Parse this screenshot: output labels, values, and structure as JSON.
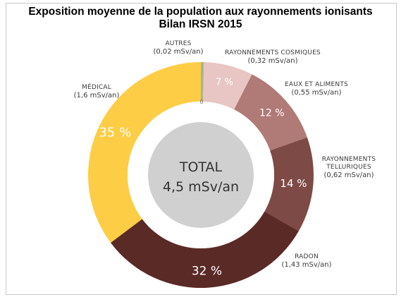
{
  "title_line1": "Exposition moyenne de la population aux rayonnements ionisants",
  "title_line2": "Bilan IRSN 2015",
  "center": {
    "label": "TOTAL",
    "value": "4,5 mSv/an"
  },
  "zero_tick": "0",
  "chart_data": {
    "type": "pie",
    "title": "Exposition moyenne de la population aux rayonnements ionisants — Bilan IRSN 2015",
    "unit": "mSv/an",
    "total": 4.5,
    "slices": [
      {
        "name": "AUTRES",
        "value": 0.02,
        "value_text": "(0,02 mSv/an)",
        "pct": "",
        "color": "#a8b590"
      },
      {
        "name": "RAYONNEMENTS COSMIQUES",
        "value": 0.32,
        "value_text": "(0,32 mSv/an)",
        "pct": "7 %",
        "color": "#e8c6c4"
      },
      {
        "name": "EAUX ET ALIMENTS",
        "value": 0.55,
        "value_text": "(0,55 mSv/an)",
        "pct": "12 %",
        "color": "#b07a76"
      },
      {
        "name": "RAYONNEMENTS TELLURIQUES",
        "value": 0.62,
        "value_text": "(0,62 mSv/an)",
        "pct": "14 %",
        "color": "#7d4a46"
      },
      {
        "name": "RADON",
        "value": 1.43,
        "value_text": "(1,43 mSv/an)",
        "pct": "32 %",
        "color": "#5a2a27"
      },
      {
        "name": "MÉDICAL",
        "value": 1.6,
        "value_text": "(1,6 mSv/an)",
        "pct": "35 %",
        "color": "#fdcd45"
      }
    ],
    "label_lines": [
      [
        "AUTRES"
      ],
      [
        "RAYONNEMENTS COSMIQUES"
      ],
      [
        "EAUX ET ALIMENTS"
      ],
      [
        "RAYONNEMENTS",
        "TELLURIQUES"
      ],
      [
        "RADON"
      ],
      [
        "MÉDICAL"
      ]
    ]
  }
}
